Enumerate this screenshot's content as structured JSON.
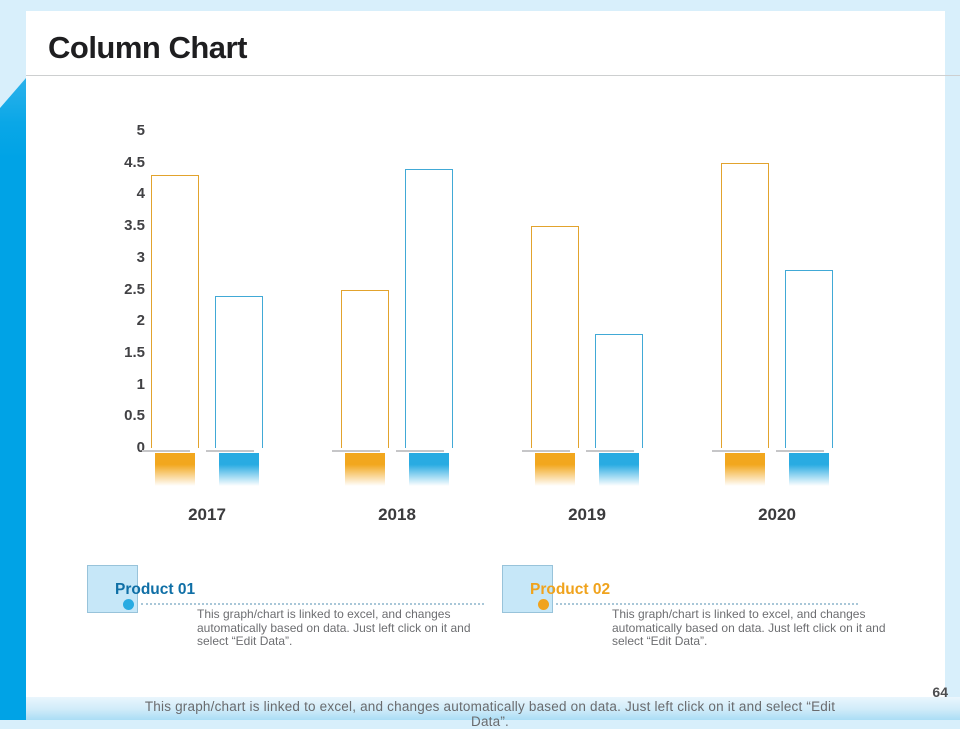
{
  "slide": {
    "title": "Column Chart",
    "page_number": "64",
    "footer_note": "This graph/chart is linked to excel, and changes automatically based on data. Just left click on it and select “Edit Data”."
  },
  "chart_data": {
    "type": "bar",
    "title": "Column Chart",
    "categories": [
      "2017",
      "2018",
      "2019",
      "2020"
    ],
    "series": [
      {
        "name": "Product 02",
        "color": "#F2A71E",
        "border_color": "#E2A32D",
        "values": [
          4.3,
          2.5,
          3.5,
          4.5
        ]
      },
      {
        "name": "Product 01",
        "color": "#29ABE2",
        "border_color": "#41A9D6",
        "values": [
          2.4,
          4.4,
          1.8,
          2.8
        ]
      }
    ],
    "yticks": [
      "5",
      "4.5",
      "4",
      "3.5",
      "3",
      "2.5",
      "2",
      "1.5",
      "1",
      "0.5",
      "0"
    ],
    "ylim": [
      0,
      5
    ],
    "xlabel": "",
    "ylabel": "",
    "grid": false,
    "legend_position": "bottom",
    "bar_style": "outlined white columns with gradient reflection blocks below the baseline"
  },
  "legend": {
    "items": [
      {
        "label": "Product 01",
        "marker_color": "#29ABE2",
        "label_color": "#0F6FA6",
        "description": "This graph/chart is linked to excel, and changes\nautomatically based on data. Just left click on it and\nselect “Edit Data”."
      },
      {
        "label": "Product 02",
        "marker_color": "#F2A71E",
        "label_color": "#F0A31D",
        "description": "This graph/chart is linked to excel, and changes\nautomatically based on data. Just left click on it and\nselect “Edit Data”."
      }
    ]
  }
}
